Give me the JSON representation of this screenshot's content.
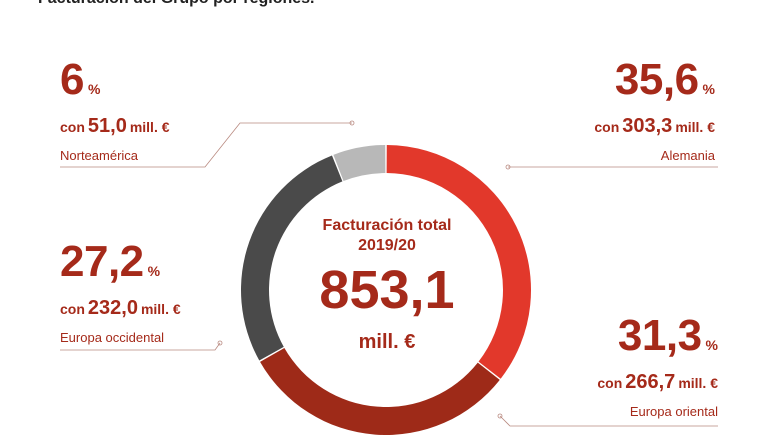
{
  "title": "Facturación del Grupo por regiones.",
  "center": {
    "label_line1": "Facturación total",
    "label_line2": "2019/20",
    "value": "853,1",
    "unit": "mill. €"
  },
  "regions": {
    "norteamerica": {
      "pct": "6",
      "pct_sign": "%",
      "con": "con",
      "amount": "51,0",
      "unit": "mill. €",
      "name": "Norteamérica"
    },
    "alemania": {
      "pct": "35,6",
      "pct_sign": "%",
      "con": "con",
      "amount": "303,3",
      "unit": "mill. €",
      "name": "Alemania"
    },
    "europa_occidental": {
      "pct": "27,2",
      "pct_sign": "%",
      "con": "con",
      "amount": "232,0",
      "unit": "mill. €",
      "name": "Europa occidental"
    },
    "europa_oriental": {
      "pct": "31,3",
      "pct_sign": "%",
      "con": "con",
      "amount": "266,7",
      "unit": "mill. €",
      "name": "Europa oriental"
    }
  },
  "chart_data": {
    "type": "pie",
    "title": "Facturación del Grupo por regiones.",
    "total": 853.1,
    "unit": "mill. €",
    "slices": [
      {
        "label": "Alemania",
        "percent": 35.6,
        "value": 303.3,
        "color": "#e2382b"
      },
      {
        "label": "Europa oriental",
        "percent": 31.3,
        "value": 266.7,
        "color": "#9e2a18"
      },
      {
        "label": "Europa occidental",
        "percent": 27.2,
        "value": 232.0,
        "color": "#4a4a4a"
      },
      {
        "label": "Norteamérica",
        "percent": 6,
        "value": 51.0,
        "color": "#b8b8b8"
      }
    ]
  }
}
